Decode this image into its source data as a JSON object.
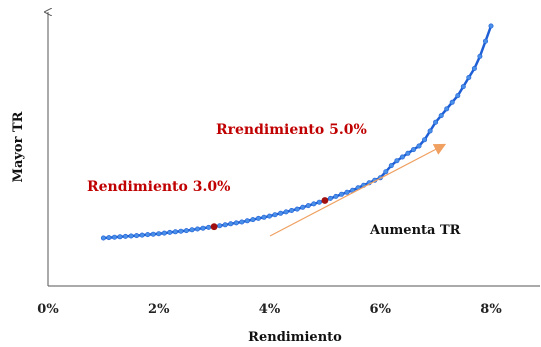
{
  "chart_data": {
    "type": "line",
    "xlabel": "Rendimiento",
    "ylabel": "Mayor TR",
    "xlim": [
      0,
      8.5
    ],
    "x_ticks": [
      "0%",
      "2%",
      "4%",
      "6%",
      "8%"
    ],
    "x_tick_values": [
      0,
      2,
      4,
      6,
      8
    ],
    "y_ticks_shown": false,
    "grid": false,
    "legend": "none",
    "series": [
      {
        "x_range": [
          1,
          8
        ],
        "points": 71,
        "y": [
          0.0,
          0.05,
          0.11,
          0.19,
          0.29,
          0.41,
          0.56,
          0.74,
          0.96,
          1.22,
          1.54,
          1.93,
          2.4,
          2.96,
          3.64,
          4.45,
          5.42
        ],
        "x": [
          1,
          1.5,
          2,
          2.5,
          3,
          3.5,
          4,
          4.5,
          5,
          5.5,
          6,
          6.25,
          6.75,
          7,
          7.4,
          7.75,
          8
        ],
        "color": "#1f5fd6",
        "marker_color": "#4a90e8"
      }
    ],
    "highlights": [
      {
        "x": 3.0,
        "label": "Rendimiento 3.0%",
        "color": "#a01010"
      },
      {
        "x": 5.0,
        "label": "Rrendimiento 5.0%",
        "color": "#a01010"
      }
    ],
    "arrow": {
      "label": "Aumenta TR",
      "color": "#f0a060"
    }
  }
}
